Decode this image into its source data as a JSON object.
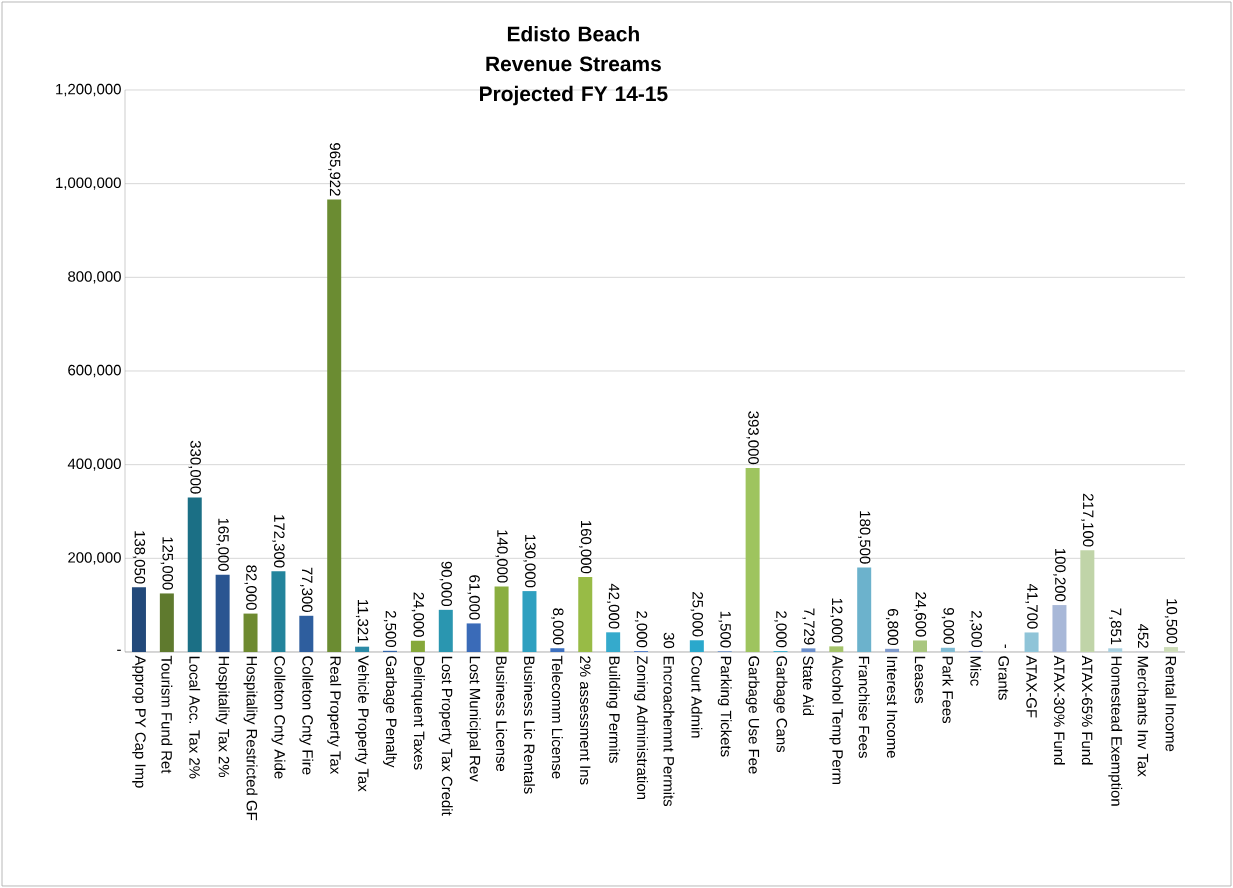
{
  "chart_data": {
    "type": "bar",
    "title": "Edisto Beach",
    "subtitle": "Revenue Streams Projected FY 14-15",
    "categories": [
      "Approp PY Cap Imp",
      "Tourism Fund Ret",
      "Local Acc. Tax 2%",
      "Hospitality Tax 2%",
      "Hospitality Restricted GF",
      "Colleton Cnty Aide",
      "Colleton Cnty Fire",
      "Real Property Tax",
      "Vehicle Property Tax",
      "Garbage Penalty",
      "Delinquent Taxes",
      "Lost Property Tax Credit",
      "Lost Municipal Rev",
      "Business License",
      "Business Lic Rentals",
      "Telecomm License",
      "2% assessment Ins",
      "Building Permits",
      "Zoning Administration",
      "Encroachemnt Permits",
      "Court Admin",
      "Parking Tickets",
      "Garbage Use Fee",
      "Garbage Cans",
      "State Aid",
      "Alcohol Temp Perm",
      "Franchise Fees",
      "Interest Income",
      "Leases",
      "Park Fees",
      "Misc",
      "Grants",
      "ATAX-GF",
      "ATAX-30% Fund",
      "ATAX-65% Fund",
      "Homestead Exemption",
      "Merchants Inv Tax",
      "Rental Income"
    ],
    "values": [
      138050,
      125000,
      330000,
      165000,
      82000,
      172300,
      77300,
      965922,
      11321,
      2500,
      24000,
      90000,
      61000,
      140000,
      130000,
      8000,
      160000,
      42000,
      2000,
      30,
      25000,
      1500,
      393000,
      2000,
      7729,
      12000,
      180500,
      6800,
      24600,
      9000,
      2300,
      0,
      41700,
      100200,
      217100,
      7851,
      452,
      10500
    ],
    "value_labels": [
      "138,050",
      "125,000",
      "330,000",
      "165,000",
      "82,000",
      "172,300",
      "77,300",
      "965,922",
      "11,321",
      "2,500",
      "24,000",
      "90,000",
      "61,000",
      "140,000",
      "130,000",
      "8,000",
      "160,000",
      "42,000",
      "2,000",
      "30",
      "25,000",
      "1,500",
      "393,000",
      "2,000",
      "7,729",
      "12,000",
      "180,500",
      "6,800",
      "24,600",
      "9,000",
      "2,300",
      "-",
      "41,700",
      "100,200",
      "217,100",
      "7,851",
      "452",
      "10,500"
    ],
    "colors": [
      "#22497a",
      "#5f7a2e",
      "#1b6f85",
      "#2a5591",
      "#6e8a30",
      "#23849c",
      "#2e5e9e",
      "#6b8c32",
      "#2b8aa6",
      "#3366aa",
      "#86a83a",
      "#2a96b0",
      "#3a6bb8",
      "#8aae40",
      "#2fa0c0",
      "#3d70c0",
      "#98bb46",
      "#35aacc",
      "#4f7ecb",
      "#a0c45a",
      "#2aa8cc",
      "#5a88cc",
      "#9ec45e",
      "#3ab0d0",
      "#6b8fcc",
      "#a5c46c",
      "#6cb2cc",
      "#7f9acc",
      "#a9c67f",
      "#80bcd4",
      "#8fa3cc",
      "#b5cf90",
      "#8fc4d8",
      "#a8b8d8",
      "#c0d4a8",
      "#a8d0e0",
      "#b8c4e0",
      "#cddcb8"
    ],
    "ylim": [
      0,
      1200000
    ],
    "yticks": [
      {
        "value": 0,
        "label": "-"
      },
      {
        "value": 200000,
        "label": "200,000"
      },
      {
        "value": 400000,
        "label": "400,000"
      },
      {
        "value": 600000,
        "label": "600,000"
      },
      {
        "value": 800000,
        "label": "800,000"
      },
      {
        "value": 1000000,
        "label": "1,000,000"
      },
      {
        "value": 1200000,
        "label": "1,200,000"
      }
    ],
    "grid": "y"
  }
}
